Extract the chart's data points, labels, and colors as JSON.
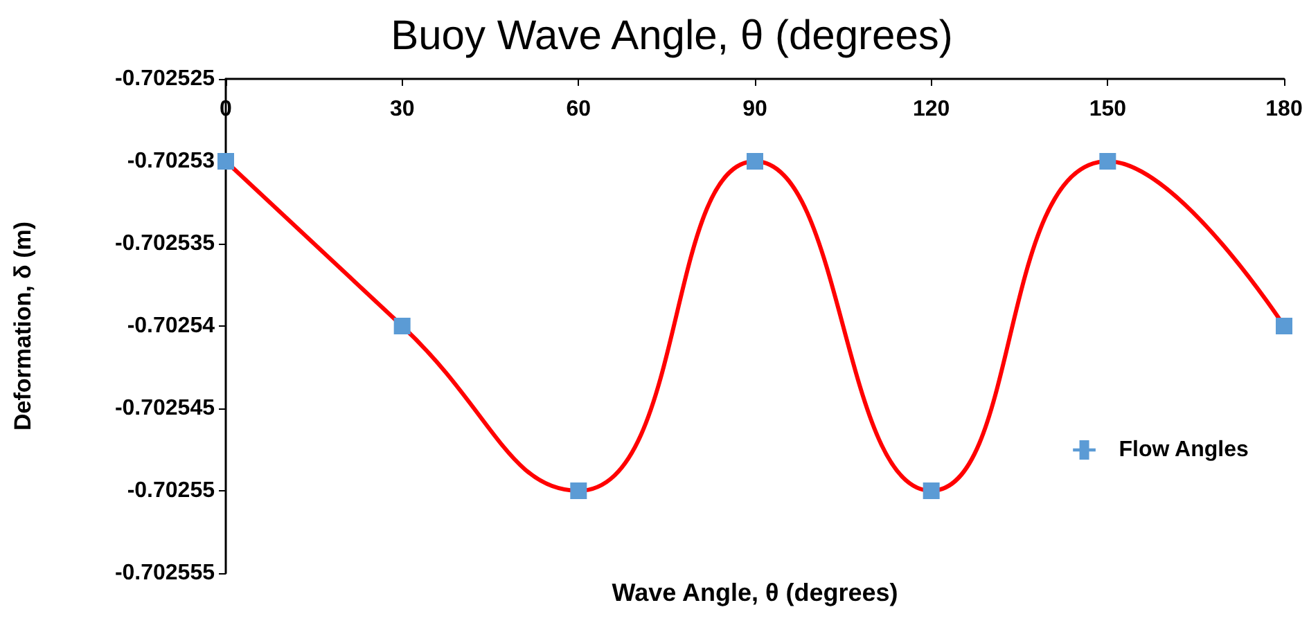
{
  "chart_data": {
    "type": "line",
    "title": "Buoy Wave Angle, θ (degrees)",
    "xlabel": "Wave Angle, θ (degrees)",
    "ylabel": "Deformation, δ (m)",
    "x": [
      0,
      30,
      60,
      90,
      120,
      150,
      180
    ],
    "series": [
      {
        "name": "Flow Angles",
        "color": "#ff0000",
        "colors": [
          "#5b9bd5",
          "#5b9bd5",
          "#5b9bd5",
          "#5b9bd5",
          "#5b9bd5",
          "#5b9bd5",
          "#5b9bd5"
        ],
        "values": [
          -0.70253,
          -0.70254,
          -0.70255,
          -0.70253,
          -0.70255,
          -0.70253,
          -0.70254
        ]
      }
    ],
    "xlim": [
      0,
      180
    ],
    "xticks": [
      0,
      30,
      60,
      90,
      120,
      150,
      180
    ],
    "ylim": [
      -0.702555,
      -0.702525
    ],
    "yticks": [
      -0.702555,
      -0.70255,
      -0.702545,
      -0.70254,
      -0.702535,
      -0.70253,
      -0.702525
    ],
    "grid": false,
    "legend": "right",
    "marker": "square",
    "line_style": "solid"
  }
}
